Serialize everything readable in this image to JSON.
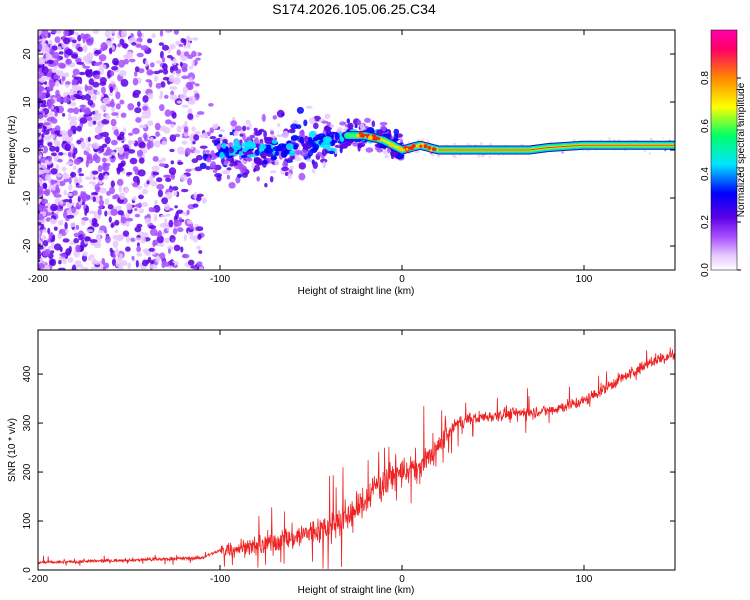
{
  "title": "S174.2026.105.06.25.C34",
  "chart_data": [
    {
      "type": "heatmap",
      "xlabel": "Height of straight line (km)",
      "ylabel": "Frequency (Hz)",
      "xlim": [
        -200,
        150
      ],
      "ylim": [
        -25,
        25
      ],
      "xticks": [
        -200,
        -100,
        0,
        100
      ],
      "yticks": [
        -20,
        -10,
        0,
        10,
        20
      ],
      "colorbar": {
        "label": "Normalized spectral amplitude",
        "range": [
          0,
          1
        ],
        "ticks": [
          "0.0",
          "0.2",
          "0.4",
          "0.6",
          "0.8"
        ],
        "colors": [
          "#ffffff",
          "#e6c8ff",
          "#a64dff",
          "#5a00e6",
          "#0000ff",
          "#00e5ff",
          "#00ff66",
          "#ffff00",
          "#ff8800",
          "#ff0066",
          "#ff00aa"
        ]
      },
      "ridge": {
        "x": [
          -100,
          -80,
          -60,
          -40,
          -30,
          -20,
          -10,
          0,
          10,
          20,
          50,
          70,
          80,
          100,
          120,
          150
        ],
        "freq": [
          0,
          0,
          1,
          2,
          3,
          3,
          2,
          0,
          1,
          0,
          0,
          0,
          0.5,
          1,
          1,
          1
        ]
      }
    },
    {
      "type": "line",
      "xlabel": "Height of straight line (km)",
      "ylabel": "SNR (10 * v/v)",
      "xlim": [
        -200,
        150
      ],
      "ylim": [
        0,
        490
      ],
      "xticks": [
        -200,
        -100,
        0,
        100
      ],
      "yticks": [
        0,
        100,
        200,
        300,
        400
      ],
      "color": "#ee2222",
      "trend": {
        "x": [
          -200,
          -150,
          -110,
          -100,
          -80,
          -60,
          -40,
          -25,
          -15,
          -5,
          0,
          10,
          20,
          30,
          40,
          60,
          80,
          100,
          120,
          140,
          150
        ],
        "y": [
          15,
          20,
          25,
          40,
          50,
          65,
          90,
          120,
          170,
          190,
          200,
          210,
          250,
          300,
          310,
          320,
          325,
          345,
          390,
          430,
          440
        ]
      }
    }
  ]
}
